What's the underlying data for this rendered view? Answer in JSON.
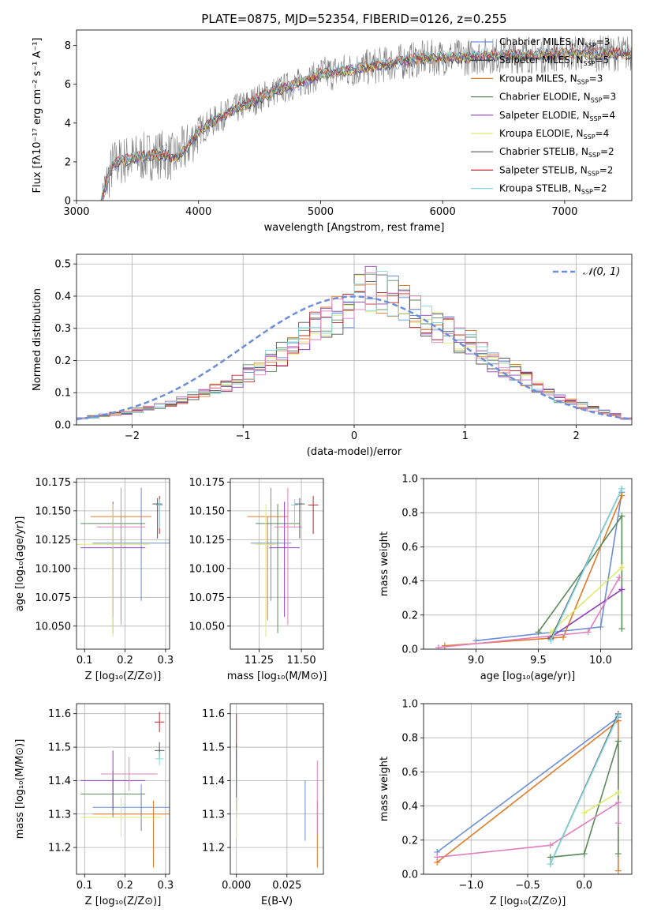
{
  "figure_title": "PLATE=0875, MJD=52354, FIBERID=0126, z=0.255",
  "chart_data": [
    {
      "id": "spectrum",
      "type": "line",
      "xlabel": "wavelength [Angstrom, rest frame]",
      "ylabel": "Flux [fλ10⁻¹⁷ erg cm⁻² s⁻¹ A⁻¹]",
      "xlim": [
        3000,
        7550
      ],
      "ylim": [
        0,
        8.8
      ],
      "xticks": [
        "3000",
        "4000",
        "5000",
        "6000",
        "7000"
      ],
      "yticks": [
        "0",
        "2",
        "4",
        "6",
        "8"
      ],
      "legend_position": "top-right",
      "observed_envelope": {
        "x": [
          3200,
          3300,
          3400,
          3500,
          3600,
          3700,
          3800,
          3900,
          4000,
          4200,
          4400,
          4600,
          4800,
          5000,
          5200,
          5400,
          5600,
          5800,
          6000,
          6200,
          6400,
          6600,
          6800,
          7000,
          7200,
          7400,
          7550
        ],
        "y": [
          0.0,
          1.9,
          2.1,
          2.2,
          2.3,
          2.4,
          2.2,
          2.7,
          3.6,
          4.4,
          5.0,
          5.6,
          6.0,
          6.5,
          6.7,
          6.9,
          7.1,
          7.3,
          7.4,
          7.4,
          7.5,
          7.5,
          7.5,
          7.6,
          7.6,
          7.6,
          7.6
        ]
      },
      "series": [
        {
          "name": "Chabrier MILES, N$_{SSP}$=3",
          "color": "#6c8ed8"
        },
        {
          "name": "Salpeter MILES, N$_{SSP}$=5",
          "color": "#2a2a2a"
        },
        {
          "name": "Kroupa MILES, N$_{SSP}$=3",
          "color": "#e07b28"
        },
        {
          "name": "Chabrier ELODIE, N$_{SSP}$=3",
          "color": "#5a8a5a"
        },
        {
          "name": "Salpeter ELODIE, N$_{SSP}$=4",
          "color": "#8a3fb8"
        },
        {
          "name": "Kroupa ELODIE, N$_{SSP}$=4",
          "color": "#dfe86a"
        },
        {
          "name": "Chabrier STELIB, N$_{SSP}$=2",
          "color": "#555555"
        },
        {
          "name": "Salpeter STELIB, N$_{SSP}$=2",
          "color": "#c0282b"
        },
        {
          "name": "Kroupa STELIB, N$_{SSP}$=2",
          "color": "#7fd6e0"
        }
      ]
    },
    {
      "id": "residuals",
      "type": "bar",
      "xlabel": "(data-model)/error",
      "ylabel": "Normed distribution",
      "xlim": [
        -2.5,
        2.5
      ],
      "ylim": [
        0,
        0.53
      ],
      "xticks": [
        "−2",
        "−1",
        "0",
        "1",
        "2"
      ],
      "yticks": [
        "0.0",
        "0.1",
        "0.2",
        "0.3",
        "0.4",
        "0.5"
      ],
      "legend": "𝒩(0, 1)",
      "legend_position": "top-right",
      "bin_edges_start": -2.5,
      "bin_width": 0.1,
      "histogram_values": [
        0.02,
        0.025,
        0.03,
        0.035,
        0.04,
        0.045,
        0.05,
        0.06,
        0.07,
        0.08,
        0.09,
        0.1,
        0.11,
        0.125,
        0.14,
        0.16,
        0.18,
        0.2,
        0.22,
        0.25,
        0.28,
        0.3,
        0.32,
        0.34,
        0.36,
        0.4,
        0.42,
        0.41,
        0.4,
        0.38,
        0.35,
        0.33,
        0.31,
        0.29,
        0.27,
        0.25,
        0.22,
        0.2,
        0.18,
        0.16,
        0.14,
        0.12,
        0.1,
        0.08,
        0.07,
        0.06,
        0.05,
        0.04,
        0.03,
        0.02
      ],
      "series": [
        {
          "name": "",
          "color": "#6c8ed8"
        },
        {
          "name": "",
          "color": "#e07b28"
        },
        {
          "name": "",
          "color": "#5a8a5a"
        },
        {
          "name": "",
          "color": "#8a3fb8"
        },
        {
          "name": "",
          "color": "#dfe86a"
        },
        {
          "name": "",
          "color": "#555555"
        },
        {
          "name": "",
          "color": "#c0282b"
        },
        {
          "name": "",
          "color": "#7fd6e0"
        },
        {
          "name": "",
          "color": "#e07fc0"
        }
      ],
      "gaussian_color": "#6c8ed8"
    },
    {
      "id": "age-vs-z",
      "type": "scatter",
      "xlabel": "Z [log₁₀(Z/Z⊙)]",
      "ylabel": "age  [log₁₀(age/yr)]",
      "xlim": [
        0.08,
        0.31
      ],
      "ylim": [
        10.03,
        10.178
      ],
      "xticks": [
        "0.1",
        "0.2",
        "0.3"
      ],
      "yticks": [
        "10.050",
        "10.075",
        "10.100",
        "10.125",
        "10.150",
        "10.175"
      ],
      "points": [
        {
          "x": 0.19,
          "y": 10.145,
          "xerr": 0.075,
          "yerr_lo": 0.09,
          "yerr_hi": 0.0,
          "color": "#e07b28"
        },
        {
          "x": 0.24,
          "y": 10.122,
          "xerr": 0.12,
          "yerr_lo": 0.05,
          "yerr_hi": 0.048,
          "color": "#6c8ed8"
        },
        {
          "x": 0.17,
          "y": 10.139,
          "xerr": 0.08,
          "yerr_lo": 0.095,
          "yerr_hi": 0.017,
          "color": "#5a8a5a"
        },
        {
          "x": 0.17,
          "y": 10.118,
          "xerr": 0.08,
          "yerr_lo": 0.06,
          "yerr_hi": 0.04,
          "color": "#8a3fb8"
        },
        {
          "x": 0.19,
          "y": 10.136,
          "xerr": 0.06,
          "yerr_lo": 0.085,
          "yerr_hi": 0.034,
          "color": "#e07fc0"
        },
        {
          "x": 0.17,
          "y": 10.121,
          "xerr": 0.09,
          "yerr_lo": 0.08,
          "yerr_hi": 0.035,
          "color": "#dfe86a"
        },
        {
          "x": 0.28,
          "y": 10.156,
          "xerr": 0.012,
          "yerr_lo": 0.03,
          "yerr_hi": 0.005,
          "color": "#555555"
        },
        {
          "x": 0.285,
          "y": 10.155,
          "xerr": 0.008,
          "yerr_lo": 0.025,
          "yerr_hi": 0.008,
          "color": "#c0282b"
        },
        {
          "x": 0.285,
          "y": 10.155,
          "xerr": 0.008,
          "yerr_lo": 0.02,
          "yerr_hi": 0.005,
          "color": "#7fd6e0"
        }
      ]
    },
    {
      "id": "age-vs-mass",
      "type": "scatter",
      "xlabel": "mass [log₁₀(M/M⊙)]",
      "ylabel": "",
      "xlim": [
        11.08,
        11.63
      ],
      "ylim": [
        10.03,
        10.178
      ],
      "xticks": [
        "11.25",
        "11.50"
      ],
      "yticks": [
        "10.050",
        "10.075",
        "10.100",
        "10.125",
        "10.150",
        "10.175"
      ],
      "points": [
        {
          "x": 11.3,
          "y": 10.145,
          "xerr": 0.12,
          "yerr_lo": 0.09,
          "yerr_hi": 0.0,
          "color": "#e07b28"
        },
        {
          "x": 11.32,
          "y": 10.122,
          "xerr": 0.12,
          "yerr_lo": 0.05,
          "yerr_hi": 0.048,
          "color": "#6c8ed8"
        },
        {
          "x": 11.36,
          "y": 10.139,
          "xerr": 0.13,
          "yerr_lo": 0.095,
          "yerr_hi": 0.017,
          "color": "#5a8a5a"
        },
        {
          "x": 11.4,
          "y": 10.118,
          "xerr": 0.09,
          "yerr_lo": 0.06,
          "yerr_hi": 0.04,
          "color": "#8a3fb8"
        },
        {
          "x": 11.42,
          "y": 10.136,
          "xerr": 0.08,
          "yerr_lo": 0.085,
          "yerr_hi": 0.034,
          "color": "#e07fc0"
        },
        {
          "x": 11.29,
          "y": 10.121,
          "xerr": 0.06,
          "yerr_lo": 0.08,
          "yerr_hi": 0.035,
          "color": "#dfe86a"
        },
        {
          "x": 11.49,
          "y": 10.156,
          "xerr": 0.03,
          "yerr_lo": 0.03,
          "yerr_hi": 0.005,
          "color": "#555555"
        },
        {
          "x": 11.57,
          "y": 10.155,
          "xerr": 0.03,
          "yerr_lo": 0.025,
          "yerr_hi": 0.008,
          "color": "#c0282b"
        },
        {
          "x": 11.46,
          "y": 10.155,
          "xerr": 0.02,
          "yerr_lo": 0.02,
          "yerr_hi": 0.005,
          "color": "#7fd6e0"
        }
      ]
    },
    {
      "id": "weight-vs-age",
      "type": "line",
      "xlabel": "age  [log₁₀(age/yr)]",
      "ylabel": "mass weight",
      "xlim": [
        8.58,
        10.25
      ],
      "ylim": [
        0.0,
        1.0
      ],
      "xticks": [
        "9.0",
        "9.5",
        "10.0"
      ],
      "yticks": [
        "0.0",
        "0.2",
        "0.4",
        "0.6",
        "0.8",
        "1.0"
      ],
      "series": [
        {
          "name": "",
          "color": "#6c8ed8",
          "x": [
            9.0,
            10.0,
            10.17
          ],
          "y": [
            0.05,
            0.13,
            0.92
          ]
        },
        {
          "name": "",
          "color": "#e07b28",
          "x": [
            8.75,
            9.7,
            10.17
          ],
          "y": [
            0.02,
            0.07,
            0.9
          ]
        },
        {
          "name": "",
          "color": "#5a8a5a",
          "x": [
            9.5,
            10.17,
            10.17
          ],
          "y": [
            0.1,
            0.78,
            0.12
          ]
        },
        {
          "name": "",
          "color": "#8a3fb8",
          "x": [
            9.6,
            10.17
          ],
          "y": [
            0.07,
            0.35
          ]
        },
        {
          "name": "",
          "color": "#dfe86a",
          "x": [
            9.6,
            10.17
          ],
          "y": [
            0.1,
            0.48
          ]
        },
        {
          "name": "",
          "color": "#e07fc0",
          "x": [
            8.7,
            9.9,
            10.15
          ],
          "y": [
            0.01,
            0.1,
            0.42
          ]
        },
        {
          "name": "",
          "color": "#555555",
          "x": [
            9.6,
            10.17
          ],
          "y": [
            0.06,
            0.94
          ]
        },
        {
          "name": "",
          "color": "#7fd6e0",
          "x": [
            9.6,
            10.17
          ],
          "y": [
            0.05,
            0.94
          ]
        }
      ]
    },
    {
      "id": "mass-vs-z",
      "type": "scatter",
      "xlabel": "Z [log₁₀(Z/Z⊙)]",
      "ylabel": "mass [log₁₀(M/M⊙)]",
      "xlim": [
        0.08,
        0.31
      ],
      "ylim": [
        11.12,
        11.63
      ],
      "xticks": [
        "0.1",
        "0.2",
        "0.3"
      ],
      "yticks": [
        "11.2",
        "11.3",
        "11.4",
        "11.5",
        "11.6"
      ],
      "points": [
        {
          "x": 0.24,
          "y": 11.3,
          "xerr": 0.12,
          "yerr": 0.05,
          "color": "#e07b28"
        },
        {
          "x": 0.24,
          "y": 11.32,
          "xerr": 0.12,
          "yerr": 0.07,
          "color": "#6c8ed8"
        },
        {
          "x": 0.17,
          "y": 11.36,
          "xerr": 0.08,
          "yerr": 0.07,
          "color": "#5a8a5a"
        },
        {
          "x": 0.17,
          "y": 11.4,
          "xerr": 0.08,
          "yerr": 0.09,
          "color": "#8a3fb8"
        },
        {
          "x": 0.21,
          "y": 11.42,
          "xerr": 0.07,
          "yerr": 0.05,
          "color": "#e07fc0"
        },
        {
          "x": 0.19,
          "y": 11.29,
          "xerr": 0.1,
          "yerr": 0.06,
          "color": "#dfe86a"
        },
        {
          "x": 0.285,
          "y": 11.49,
          "xerr": 0.012,
          "yerr": 0.025,
          "color": "#555555"
        },
        {
          "x": 0.285,
          "y": 11.575,
          "xerr": 0.012,
          "yerr": 0.03,
          "color": "#c0282b"
        },
        {
          "x": 0.285,
          "y": 11.465,
          "xerr": 0.01,
          "yerr": 0.02,
          "color": "#7fd6e0"
        },
        {
          "x": 0.27,
          "y": 11.24,
          "xerr": 0.0,
          "yerr": 0.1,
          "color": "#e07b28"
        }
      ]
    },
    {
      "id": "mass-vs-ebv",
      "type": "scatter",
      "xlabel": "E(B-V)",
      "ylabel": "",
      "xlim": [
        -0.003,
        0.043
      ],
      "ylim": [
        11.12,
        11.63
      ],
      "xticks": [
        "0.000",
        "0.025"
      ],
      "yticks": [
        "11.2",
        "11.3",
        "11.4",
        "11.5",
        "11.6"
      ],
      "points": [
        {
          "x": 0.0,
          "y": 11.55,
          "xerr": 0.0,
          "yerr": 0.05,
          "color": "#c0282b"
        },
        {
          "x": 0.0,
          "y": 11.47,
          "xerr": 0.0,
          "yerr": 0.04,
          "color": "#555555"
        },
        {
          "x": 0.0,
          "y": 11.43,
          "xerr": 0.0,
          "yerr": 0.05,
          "color": "#7fd6e0"
        },
        {
          "x": 0.0,
          "y": 11.4,
          "xerr": 0.0,
          "yerr": 0.09,
          "color": "#8a3fb8"
        },
        {
          "x": 0.0,
          "y": 11.36,
          "xerr": 0.0,
          "yerr": 0.07,
          "color": "#5a8a5a"
        },
        {
          "x": 0.0,
          "y": 11.29,
          "xerr": 0.0,
          "yerr": 0.06,
          "color": "#dfe86a"
        },
        {
          "x": 0.034,
          "y": 11.31,
          "xerr": 0.0,
          "yerr": 0.09,
          "color": "#6c8ed8"
        },
        {
          "x": 0.04,
          "y": 11.24,
          "xerr": 0.0,
          "yerr": 0.1,
          "color": "#e07b28"
        },
        {
          "x": 0.04,
          "y": 11.35,
          "xerr": 0.0,
          "yerr": 0.11,
          "color": "#e07fc0"
        }
      ]
    },
    {
      "id": "weight-vs-z",
      "type": "line",
      "xlabel": "Z [log₁₀(Z/Z⊙)]",
      "ylabel": "mass weight",
      "xlim": [
        -1.42,
        0.42
      ],
      "ylim": [
        0.0,
        1.0
      ],
      "xticks": [
        "−1.0",
        "−0.5",
        "0.0"
      ],
      "yticks": [
        "0.0",
        "0.2",
        "0.4",
        "0.6",
        "0.8",
        "1.0"
      ],
      "series": [
        {
          "name": "",
          "color": "#6c8ed8",
          "x": [
            -1.3,
            0.3
          ],
          "y": [
            0.13,
            0.92
          ]
        },
        {
          "name": "",
          "color": "#e07b28",
          "x": [
            -1.3,
            0.3,
            0.3
          ],
          "y": [
            0.07,
            0.9,
            0.02
          ]
        },
        {
          "name": "",
          "color": "#5a8a5a",
          "x": [
            -0.3,
            0.0,
            0.3,
            0.3
          ],
          "y": [
            0.1,
            0.12,
            0.78,
            0.12
          ]
        },
        {
          "name": "",
          "color": "#dfe86a",
          "x": [
            0.0,
            0.3
          ],
          "y": [
            0.36,
            0.48
          ]
        },
        {
          "name": "",
          "color": "#e07fc0",
          "x": [
            -1.3,
            -0.3,
            0.3,
            0.3
          ],
          "y": [
            0.1,
            0.17,
            0.42,
            0.3
          ]
        },
        {
          "name": "",
          "color": "#555555",
          "x": [
            -0.3,
            0.3
          ],
          "y": [
            0.06,
            0.94
          ]
        },
        {
          "name": "",
          "color": "#7fd6e0",
          "x": [
            -0.3,
            0.3
          ],
          "y": [
            0.06,
            0.93
          ]
        }
      ]
    }
  ]
}
